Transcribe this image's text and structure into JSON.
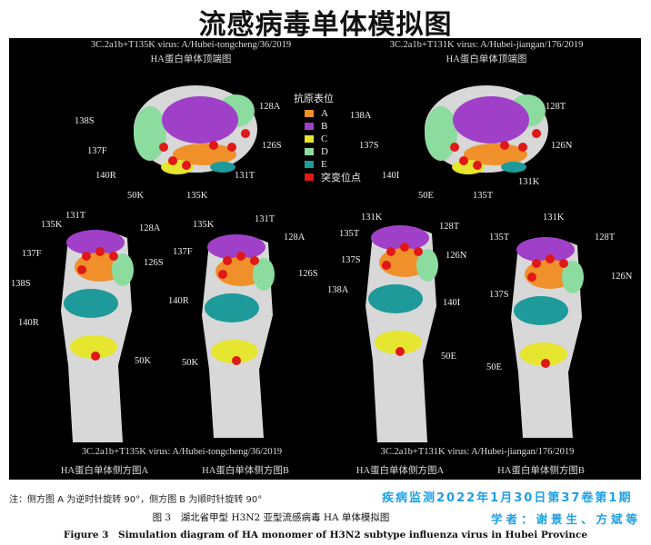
{
  "title": "流感病毒单体模拟图",
  "left": {
    "virus": "3C.2a1b+T135K virus: A/Hubei-tongcheng/36/2019",
    "top_view": "HA蛋白单体顶端图",
    "side_a": "HA蛋白单体侧方图A",
    "side_b": "HA蛋白单体侧方图B",
    "top_labels": [
      "128A",
      "138S",
      "126S",
      "137F",
      "140R",
      "131T",
      "50K",
      "135K"
    ],
    "side_a_labels": [
      "131T",
      "135K",
      "128A",
      "137F",
      "126S",
      "138S",
      "140R",
      "50K"
    ],
    "side_b_labels": [
      "135K",
      "131T",
      "128A",
      "137F",
      "126S",
      "140R",
      "50K"
    ]
  },
  "right": {
    "virus": "3C.2a1b+T131K virus: A/Hubei-jiangan/176/2019",
    "top_view": "HA蛋白单体顶端图",
    "side_a": "HA蛋白单体侧方图A",
    "side_b": "HA蛋白单体侧方图B",
    "top_labels": [
      "128T",
      "138A",
      "137S",
      "126N",
      "140I",
      "131K",
      "50E",
      "135T"
    ],
    "side_a_labels": [
      "131K",
      "128T",
      "135T",
      "126N",
      "137S",
      "138A",
      "140I",
      "50E"
    ],
    "side_b_labels": [
      "131K",
      "135T",
      "128T",
      "137S",
      "126N",
      "50E"
    ]
  },
  "legend": {
    "title": "抗原表位",
    "items": [
      {
        "label": "A",
        "color": "#f0902a"
      },
      {
        "label": "B",
        "color": "#a040c8"
      },
      {
        "label": "C",
        "color": "#e6e630"
      },
      {
        "label": "D",
        "color": "#8cdca0"
      },
      {
        "label": "E",
        "color": "#1e9a9a"
      },
      {
        "label": "突变位点",
        "color": "#e01818"
      }
    ]
  },
  "note": "注：侧方图 A 为逆时针旋转 90°，侧方图 B 为顺时针旋转 90°",
  "caption_cn": "图 3　湖北省甲型 H3N2 亚型流感病毒 HA 单体模拟图",
  "caption_en": "Figure 3　Simulation diagram of HA monomer of H3N2 subtype influenza virus in Hubei Province",
  "watermark": {
    "journal": "疾病监测2022年1月30日第37卷第1期",
    "authors": "学者：谢景生、方斌等",
    "color": "#1ea0e6"
  }
}
